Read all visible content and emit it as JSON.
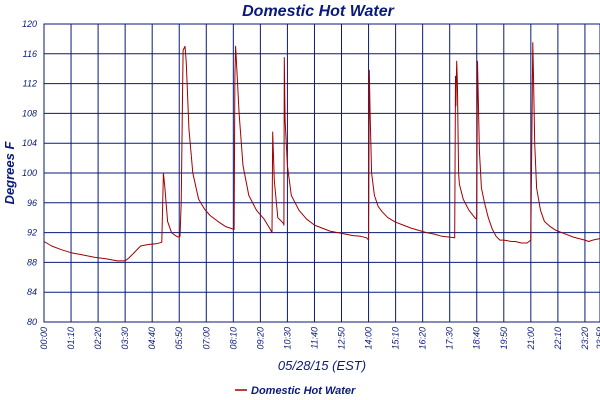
{
  "chart_data": {
    "type": "line",
    "title": "Domestic Hot Water",
    "xlabel": "05/28/15 (EST)",
    "ylabel": "Degrees F",
    "ylim": [
      80,
      120
    ],
    "y_ticks": [
      80,
      84,
      88,
      92,
      96,
      100,
      104,
      108,
      112,
      116,
      120
    ],
    "x_tick_labels": [
      "00:00",
      "01:10",
      "02:20",
      "03:30",
      "04:40",
      "05:50",
      "07:00",
      "08:10",
      "09:20",
      "10:30",
      "11:40",
      "12:50",
      "14:00",
      "15:10",
      "16:20",
      "17:30",
      "18:40",
      "19:50",
      "21:00",
      "22:10",
      "23:20",
      "23:59"
    ],
    "x_tick_minutes": [
      0,
      70,
      140,
      210,
      280,
      350,
      420,
      490,
      560,
      630,
      700,
      770,
      840,
      910,
      980,
      1050,
      1120,
      1190,
      1260,
      1330,
      1400,
      1439
    ],
    "xlim_minutes": [
      0,
      1439
    ],
    "grid": true,
    "legend_position": "bottom",
    "colors": {
      "series": "#a00000",
      "grid": "#0a1a7a",
      "text": "#0a1a7a"
    },
    "series": [
      {
        "name": "Domestic Hot Water",
        "x": [
          "00:00",
          "00:20",
          "00:45",
          "01:10",
          "01:40",
          "02:10",
          "02:40",
          "03:10",
          "03:30",
          "03:40",
          "03:55",
          "04:10",
          "04:30",
          "04:50",
          "05:05",
          "05:09",
          "05:13",
          "05:20",
          "05:30",
          "05:40",
          "05:47",
          "05:52",
          "05:55",
          "06:00",
          "06:05",
          "06:08",
          "06:15",
          "06:25",
          "06:40",
          "06:55",
          "07:10",
          "07:30",
          "07:50",
          "08:08",
          "08:10",
          "08:12",
          "08:14",
          "08:16",
          "08:20",
          "08:25",
          "08:35",
          "08:50",
          "09:10",
          "09:30",
          "09:45",
          "09:50",
          "09:52",
          "09:56",
          "10:05",
          "10:15",
          "10:20",
          "10:21",
          "10:22",
          "10:24",
          "10:30",
          "10:40",
          "11:00",
          "11:20",
          "11:40",
          "12:00",
          "12:20",
          "12:40",
          "13:00",
          "13:20",
          "13:40",
          "13:55",
          "14:00",
          "14:02",
          "14:04",
          "14:08",
          "14:15",
          "14:25",
          "14:35",
          "14:50",
          "15:10",
          "15:30",
          "15:50",
          "16:10",
          "16:30",
          "16:50",
          "17:10",
          "17:30",
          "17:43",
          "17:45",
          "17:46",
          "17:48",
          "17:50",
          "17:52",
          "17:53",
          "17:55",
          "18:05",
          "18:20",
          "18:35",
          "18:40",
          "18:42",
          "18:44",
          "18:47",
          "18:52",
          "19:00",
          "19:10",
          "19:20",
          "19:30",
          "19:40",
          "19:50",
          "20:00",
          "20:10",
          "20:20",
          "20:35",
          "20:50",
          "21:00",
          "21:05",
          "21:07",
          "21:10",
          "21:15",
          "21:25",
          "21:35",
          "21:50",
          "22:05",
          "22:20",
          "22:35",
          "22:50",
          "23:05",
          "23:20",
          "23:30",
          "23:40",
          "23:50",
          "23:59"
        ],
        "values": [
          90.8,
          90.2,
          89.7,
          89.3,
          89.0,
          88.7,
          88.5,
          88.2,
          88.2,
          88.6,
          89.4,
          90.2,
          90.4,
          90.5,
          90.7,
          100.0,
          98.0,
          93.5,
          92.0,
          91.6,
          91.4,
          91.5,
          96.0,
          116.5,
          117.0,
          115.0,
          106.0,
          100.0,
          96.5,
          95.2,
          94.3,
          93.5,
          92.8,
          92.5,
          92.5,
          92.4,
          113.0,
          117.0,
          113.0,
          108.0,
          101.0,
          97.0,
          95.0,
          93.8,
          92.5,
          92.0,
          105.5,
          99.0,
          94.0,
          93.5,
          93.2,
          93.0,
          115.5,
          107.0,
          101.0,
          97.0,
          95.0,
          93.8,
          93.0,
          92.6,
          92.2,
          92.0,
          91.8,
          91.6,
          91.5,
          91.3,
          91.0,
          113.8,
          108.0,
          100.0,
          97.0,
          95.5,
          94.8,
          94.0,
          93.4,
          93.0,
          92.6,
          92.3,
          92.0,
          91.8,
          91.5,
          91.4,
          91.3,
          113.0,
          109.0,
          115.0,
          112.0,
          104.0,
          100.0,
          98.5,
          96.5,
          95.0,
          94.0,
          93.8,
          115.0,
          110.0,
          103.0,
          98.0,
          96.0,
          94.0,
          92.5,
          91.5,
          91.0,
          91.0,
          90.9,
          90.8,
          90.8,
          90.6,
          90.6,
          91.0,
          117.5,
          113.0,
          104.0,
          98.0,
          95.0,
          93.5,
          92.8,
          92.3,
          92.0,
          91.7,
          91.4,
          91.2,
          91.0,
          90.8,
          91.0,
          91.1,
          91.2
        ]
      }
    ]
  }
}
